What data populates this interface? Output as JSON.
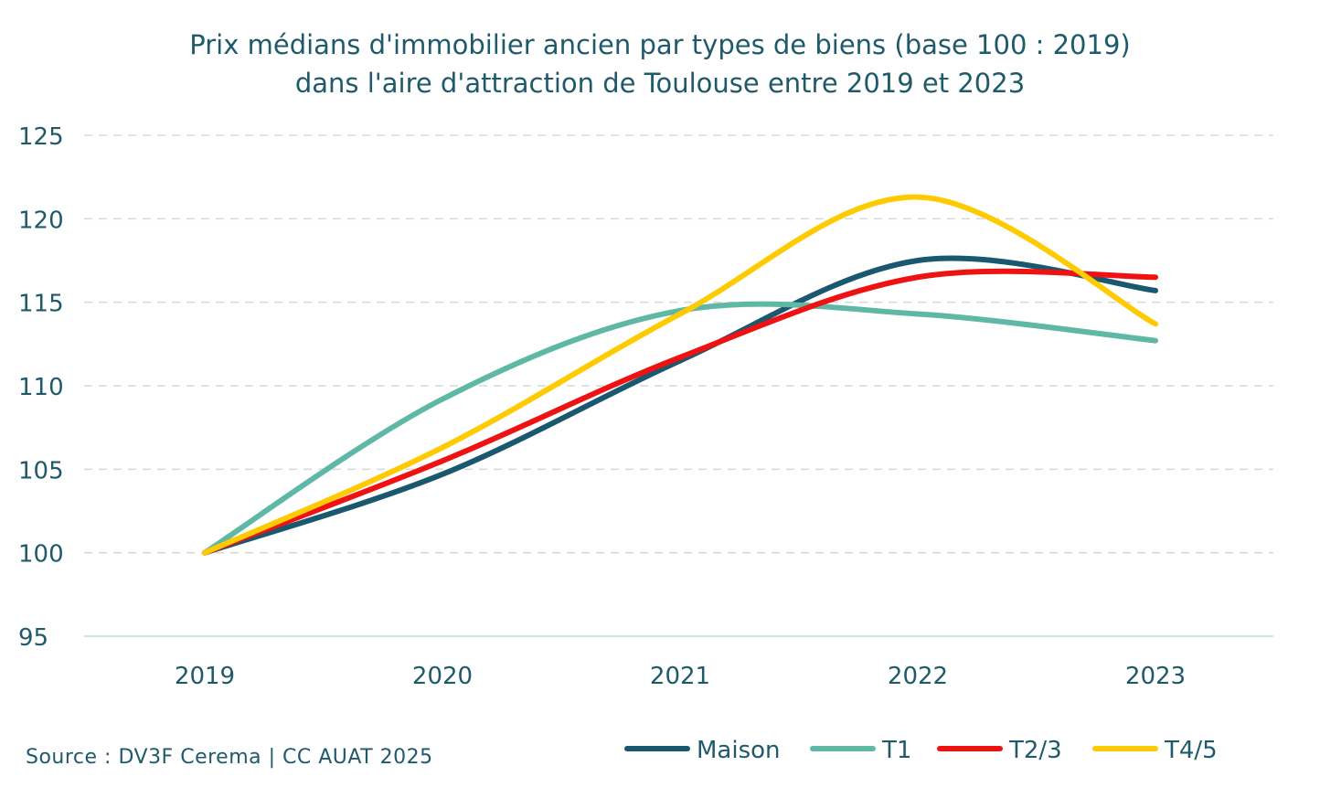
{
  "chart_data": {
    "type": "line",
    "title": [
      "Prix médians d'immobilier ancien par types de biens (base 100 : 2019)",
      "dans l'aire d'attraction de Toulouse entre 2019 et 2023"
    ],
    "categories": [
      "2019",
      "2020",
      "2021",
      "2022",
      "2023"
    ],
    "ylim": [
      95,
      125
    ],
    "yticks": [
      95,
      100,
      105,
      110,
      115,
      120,
      125
    ],
    "ytick_labels": [
      "95",
      "100",
      "105",
      "110",
      "115",
      "120",
      "125"
    ],
    "grid": true,
    "legend_position": "bottom-right",
    "series": [
      {
        "name": "Maison",
        "values": [
          100,
          104.7,
          111.5,
          117.5,
          115.7
        ],
        "color": "#1a5870"
      },
      {
        "name": "T1",
        "values": [
          100,
          109.2,
          114.5,
          114.3,
          112.7
        ],
        "color": "#5fb8a5"
      },
      {
        "name": "T2/3",
        "values": [
          100,
          105.5,
          111.7,
          116.5,
          116.5
        ],
        "color": "#ee1212"
      },
      {
        "name": "T4/5",
        "values": [
          100,
          106.3,
          114.3,
          121.3,
          113.7
        ],
        "color": "#fecb00"
      }
    ]
  },
  "source": "Source : DV3F Cerema | CC AUAT 2025"
}
